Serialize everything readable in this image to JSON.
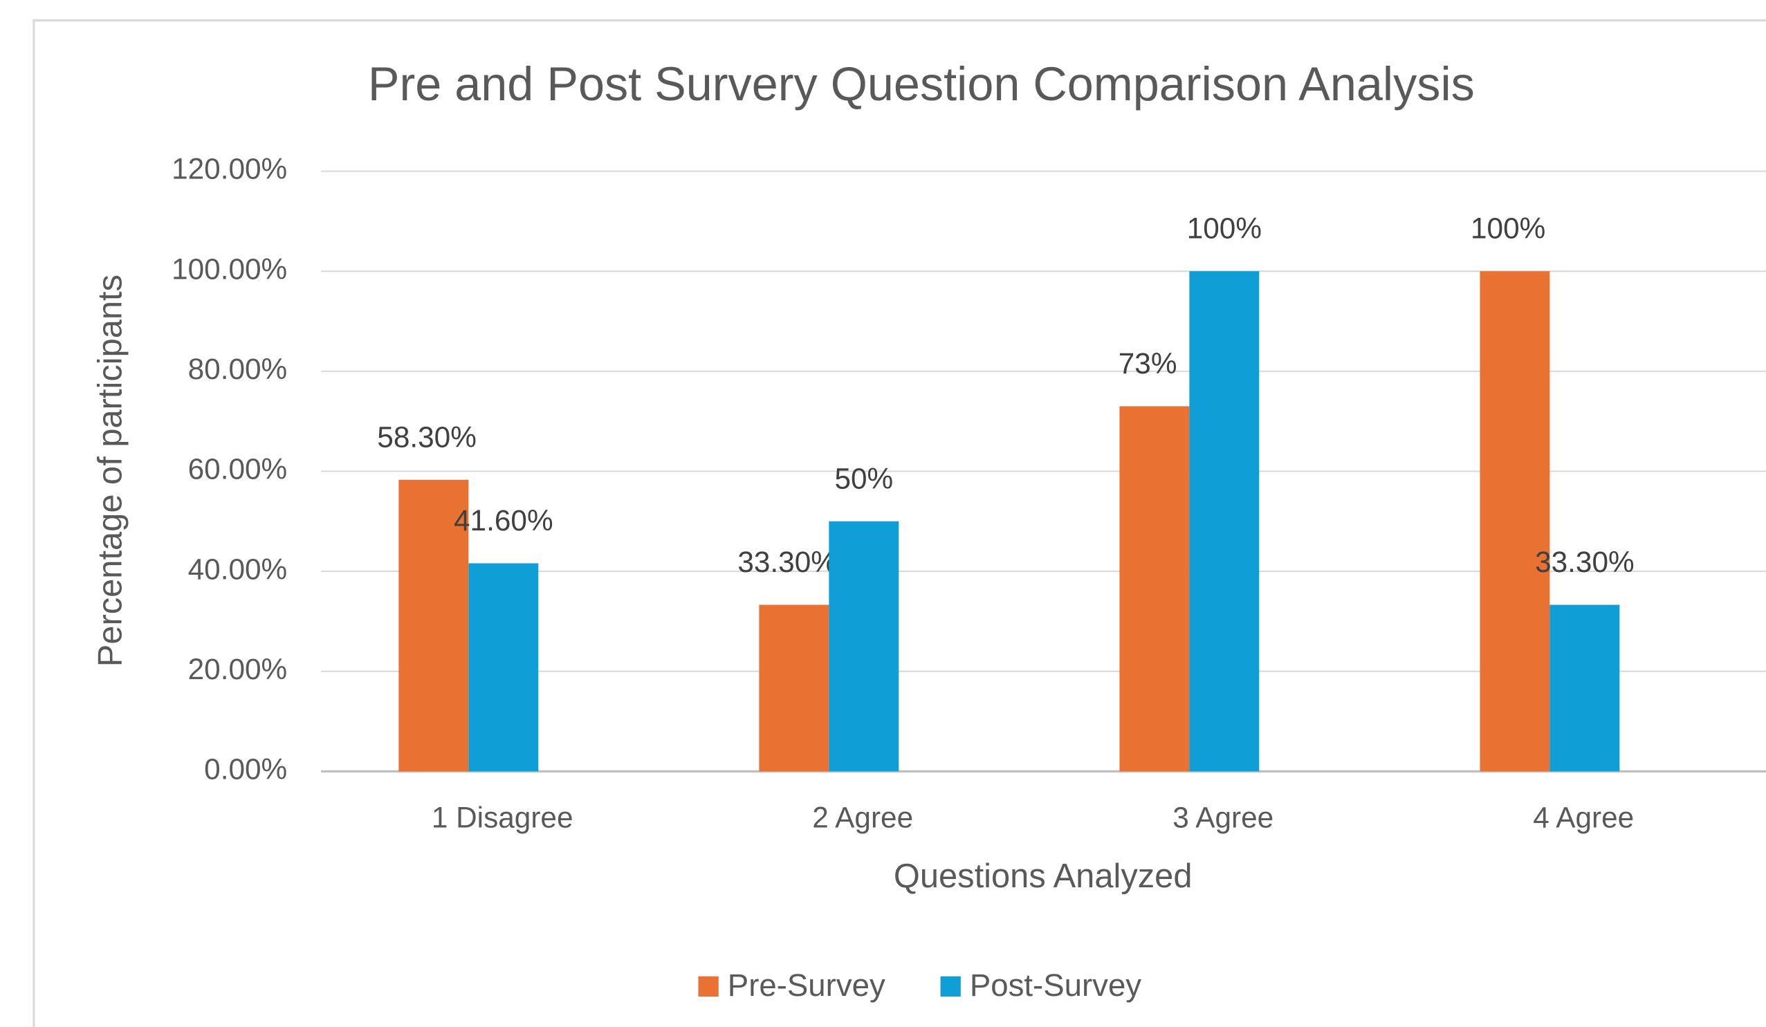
{
  "chart_data": {
    "type": "bar",
    "title": "Pre and Post Survery Question Comparison Analysis",
    "x_label": "Questions Analyzed",
    "y_label": "Percentage of participants",
    "categories": [
      "1 Disagree",
      "2 Agree",
      "3 Agree",
      "4 Agree"
    ],
    "series": [
      {
        "name": "Pre-Survey",
        "color": "#e97132",
        "values": [
          58.3,
          33.3,
          73,
          100
        ],
        "value_labels": [
          "58.30%",
          "33.30%",
          "73%",
          "100%"
        ]
      },
      {
        "name": "Post-Survey",
        "color": "#0f9ed5",
        "values": [
          41.6,
          50,
          100,
          33.3
        ],
        "value_labels": [
          "41.60%",
          "50%",
          "100%",
          "33.30%"
        ]
      }
    ],
    "ylim": [
      0,
      120
    ],
    "yticks": [
      {
        "value": 0,
        "label": "0.00%"
      },
      {
        "value": 20,
        "label": "20.00%"
      },
      {
        "value": 40,
        "label": "40.00%"
      },
      {
        "value": 60,
        "label": "60.00%"
      },
      {
        "value": 80,
        "label": "80.00%"
      },
      {
        "value": 100,
        "label": "100.00%"
      },
      {
        "value": 120,
        "label": "120.00%"
      }
    ],
    "grid": true,
    "legend": "bottom"
  }
}
